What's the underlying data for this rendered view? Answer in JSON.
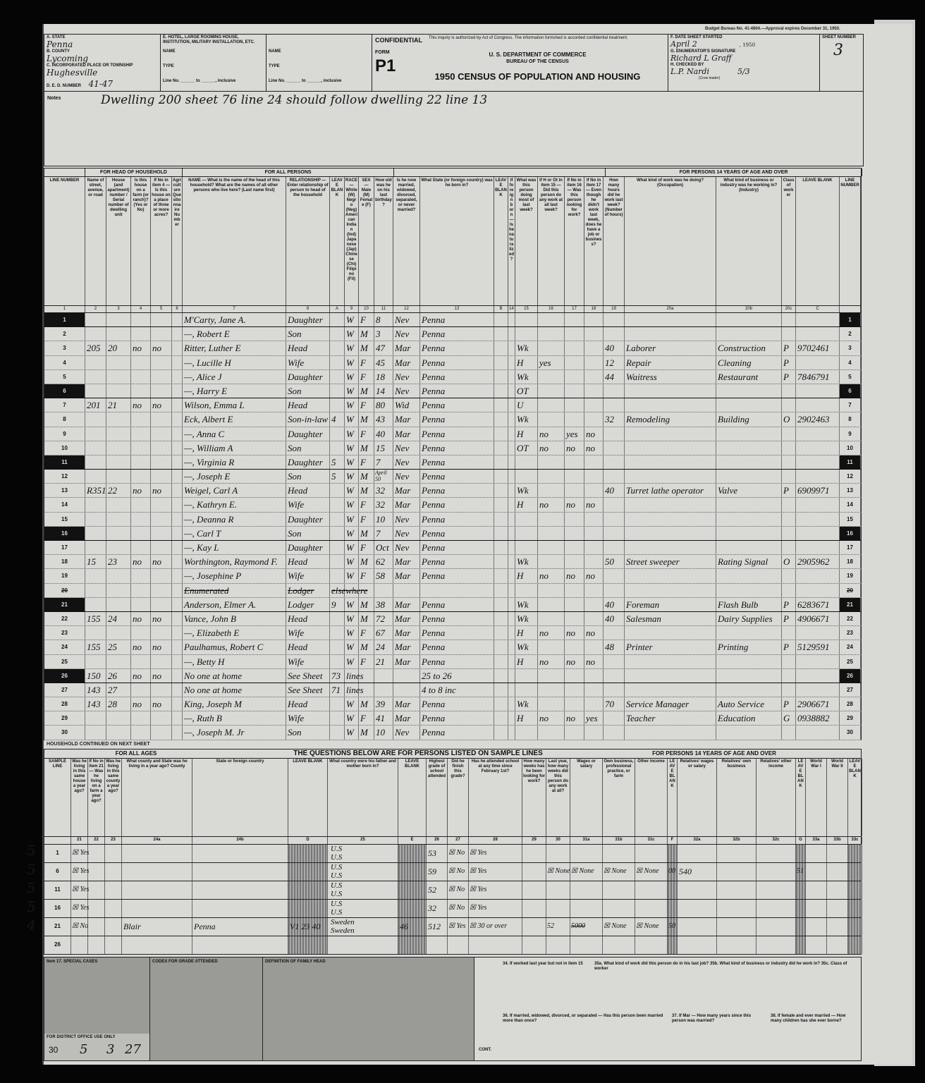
{
  "header": {
    "budget_note": "Budget Bureau No. 41-4804.—Approval expires December 31, 1950.",
    "state_label": "a. State",
    "state": "Penna",
    "county_label": "b. County",
    "county": "Lycoming",
    "place_label": "c. Incorporated place or township",
    "place": "Hughesville",
    "ed_label": "d. E. D. number",
    "ed": "41-47",
    "institution_label": "e. Hotel, large rooming house, institution, military installation, etc.",
    "name_label": "Name",
    "type_label": "Type",
    "line_label": "Line No. ______ to ______, inclusive",
    "confidential": "CONFIDENTIAL",
    "confidential_text": "This inquiry is authorized by Act of Congress. The information furnished is accorded confidential treatment.",
    "form_label": "FORM",
    "form": "P1",
    "dept": "U. S. DEPARTMENT OF COMMERCE",
    "bureau": "BUREAU OF THE CENSUS",
    "census_title": "1950 CENSUS OF POPULATION AND HOUSING",
    "date_label": "f. Date sheet started",
    "date": "April 2",
    "year": ", 1950",
    "enumerator_label": "g. Enumerator's signature",
    "enumerator": "Richard L Graff",
    "checked_label": "h. Checked by",
    "checked": "L.P. Nardi",
    "checked_date": "5/3",
    "crew_leader": "(Crew leader)",
    "sheet_label": "SHEET NUMBER",
    "sheet": "3"
  },
  "notes": {
    "label": "Notes",
    "text": "Dwelling 200 sheet 76 line 24 should follow dwelling 22 line 13"
  },
  "sections": [
    "",
    "FOR HEAD OF HOUSEHOLD",
    "FOR ALL PERSONS",
    "",
    "FOR PERSONS 14 YEARS OF AGE AND OVER"
  ],
  "columns": [
    {
      "n": "1",
      "q": "LINE NUMBER"
    },
    {
      "n": "2",
      "q": "Name of street, avenue, or road"
    },
    {
      "n": "3",
      "q": "House (and apartment) number / Serial number of dwelling unit"
    },
    {
      "n": "4",
      "q": "Is this house on a farm (or ranch)? (Yes or No)"
    },
    {
      "n": "5",
      "q": "If No in item 4 — Is this house on a place of three or more acres?"
    },
    {
      "n": "6",
      "q": "Agriculture Questionnaire Number"
    },
    {
      "n": "7",
      "q": "NAME — What is the name of the head of this household? What are the names of all other persons who live here? (Last name first)"
    },
    {
      "n": "8",
      "q": "RELATIONSHIP — Enter relationship of person to head of the household"
    },
    {
      "n": "A",
      "q": "LEAVE BLANK"
    },
    {
      "n": "9",
      "q": "RACE — White (W) Negro (Neg) American Indian (Ind) Japanese (Jap) Chinese (Chi) Filipino (Fil)"
    },
    {
      "n": "10",
      "q": "SEX — Male (M) Female (F)"
    },
    {
      "n": "11",
      "q": "How old was he on his last birthday?"
    },
    {
      "n": "12",
      "q": "Is he now married, widowed, divorced, separated, or never married?"
    },
    {
      "n": "13",
      "q": "What State (or foreign country) was he born in?"
    },
    {
      "n": "B",
      "q": "LEAVE BLANK"
    },
    {
      "n": "14",
      "q": "If foreign born — Is he naturalized?"
    },
    {
      "n": "15",
      "q": "What was this person doing most of last week?"
    },
    {
      "n": "16",
      "q": "If H or Ot in item 15 — Did this person do any work at all last week?"
    },
    {
      "n": "17",
      "q": "If No in item 16 — Was this person looking for work?"
    },
    {
      "n": "18",
      "q": "If No in item 17 — Even though he didn't work last week, does he have a job or business?"
    },
    {
      "n": "19",
      "q": "How many hours did he work last week? (Number of hours)"
    },
    {
      "n": "20a",
      "q": "What kind of work was he doing? (Occupation)"
    },
    {
      "n": "20b",
      "q": "What kind of business or industry was he working in? (Industry)"
    },
    {
      "n": "20c",
      "q": "Class of worker"
    },
    {
      "n": "C",
      "q": "LEAVE BLANK"
    },
    {
      "n": "",
      "q": "LINE NUMBER"
    }
  ],
  "rows": [
    {
      "ln": "1",
      "name": "M'Carty, Jane A.",
      "rel": "Daughter",
      "race": "W",
      "sex": "F",
      "age": "8",
      "mar": "Nev",
      "birth": "Penna"
    },
    {
      "ln": "2",
      "name": "—, Robert E",
      "rel": "Son",
      "race": "W",
      "sex": "M",
      "age": "3",
      "mar": "Nev",
      "birth": "Penna"
    },
    {
      "ln": "3",
      "dw": "205",
      "serial": "20",
      "farm": "no",
      "acres": "no",
      "name": "Ritter, Luther E",
      "rel": "Head",
      "race": "W",
      "sex": "M",
      "age": "47",
      "mar": "Mar",
      "birth": "Penna",
      "c15": "Wk",
      "c19": "40",
      "occ": "Laborer",
      "ind": "Construction",
      "cls": "P",
      "code": "9702461"
    },
    {
      "ln": "4",
      "name": "—, Lucille H",
      "rel": "Wife",
      "race": "W",
      "sex": "F",
      "age": "45",
      "mar": "Mar",
      "birth": "Penna",
      "c15": "H",
      "c16": "yes",
      "c19": "12",
      "occ": "Repair",
      "ind": "Cleaning",
      "cls": "P"
    },
    {
      "ln": "5",
      "name": "—, Alice J",
      "rel": "Daughter",
      "race": "W",
      "sex": "F",
      "age": "18",
      "mar": "Nev",
      "birth": "Penna",
      "c15": "Wk",
      "c19": "44",
      "occ": "Waitress",
      "ind": "Restaurant",
      "cls": "P",
      "code": "7846791"
    },
    {
      "ln": "6",
      "name": "—, Harry E",
      "rel": "Son",
      "race": "W",
      "sex": "M",
      "age": "14",
      "mar": "Nev",
      "birth": "Penna",
      "c15": "OT"
    },
    {
      "ln": "7",
      "dw": "201",
      "serial": "21",
      "farm": "no",
      "acres": "no",
      "name": "Wilson, Emma L",
      "rel": "Head",
      "race": "W",
      "sex": "F",
      "age": "80",
      "mar": "Wid",
      "birth": "Penna",
      "c15": "U"
    },
    {
      "ln": "8",
      "name": "Eck, Albert E",
      "rel": "Son-in-law",
      "a": "4",
      "race": "W",
      "sex": "M",
      "age": "43",
      "mar": "Mar",
      "birth": "Penna",
      "c15": "Wk",
      "c19": "32",
      "occ": "Remodeling",
      "ind": "Building",
      "cls": "O",
      "code": "2902463"
    },
    {
      "ln": "9",
      "name": "—, Anna C",
      "rel": "Daughter",
      "race": "W",
      "sex": "F",
      "age": "40",
      "mar": "Mar",
      "birth": "Penna",
      "c15": "H",
      "c16": "no",
      "c17": "yes",
      "c18": "no"
    },
    {
      "ln": "10",
      "name": "—, William A",
      "rel": "Son",
      "race": "W",
      "sex": "M",
      "age": "15",
      "mar": "Nev",
      "birth": "Penna",
      "c15": "OT",
      "c16": "no",
      "c17": "no",
      "c18": "no"
    },
    {
      "ln": "11",
      "name": "—, Virginia R",
      "rel": "Daughter",
      "a": "5",
      "race": "W",
      "sex": "F",
      "age": "7",
      "mar": "Nev",
      "birth": "Penna"
    },
    {
      "ln": "12",
      "name": "—, Joseph E",
      "rel": "Son",
      "a": "5",
      "race": "W",
      "sex": "M",
      "age": "April 50",
      "mar": "Nev",
      "birth": "Penna"
    },
    {
      "ln": "13",
      "dw": "R351",
      "serial": "22",
      "farm": "no",
      "acres": "no",
      "name": "Weigel, Carl A",
      "rel": "Head",
      "race": "W",
      "sex": "M",
      "age": "32",
      "mar": "Mar",
      "birth": "Penna",
      "c15": "Wk",
      "c19": "40",
      "occ": "Turret lathe operator",
      "ind": "Valve",
      "cls": "P",
      "code": "6909971"
    },
    {
      "ln": "14",
      "name": "—, Kathryn E.",
      "rel": "Wife",
      "race": "W",
      "sex": "F",
      "age": "32",
      "mar": "Mar",
      "birth": "Penna",
      "c15": "H",
      "c16": "no",
      "c17": "no",
      "c18": "no"
    },
    {
      "ln": "15",
      "name": "—, Deanna R",
      "rel": "Daughter",
      "race": "W",
      "sex": "F",
      "age": "10",
      "mar": "Nev",
      "birth": "Penna"
    },
    {
      "ln": "16",
      "name": "—, Carl T",
      "rel": "Son",
      "race": "W",
      "sex": "M",
      "age": "7",
      "mar": "Nev",
      "birth": "Penna"
    },
    {
      "ln": "17",
      "name": "—, Kay L",
      "rel": "Daughter",
      "race": "W",
      "sex": "F",
      "age": "Oct",
      "mar": "Nev",
      "birth": "Penna"
    },
    {
      "ln": "18",
      "dw": "15",
      "serial": "23",
      "farm": "no",
      "acres": "no",
      "name": "Worthington, Raymond F.",
      "rel": "Head",
      "race": "W",
      "sex": "M",
      "age": "62",
      "mar": "Mar",
      "birth": "Penna",
      "c15": "Wk",
      "c19": "50",
      "occ": "Street sweeper",
      "ind": "Rating Signal",
      "cls": "O",
      "code": "2905962"
    },
    {
      "ln": "19",
      "name": "—, Josephine P",
      "rel": "Wife",
      "race": "W",
      "sex": "F",
      "age": "58",
      "mar": "Mar",
      "birth": "Penna",
      "c15": "H",
      "c16": "no",
      "c17": "no",
      "c18": "no"
    },
    {
      "ln": "20",
      "name": "Enumerated",
      "rel": "Lodger",
      "a": "elsewhere",
      "strike": true
    },
    {
      "ln": "21",
      "name": "Anderson, Elmer A.",
      "rel": "Lodger",
      "a": "9",
      "race": "W",
      "sex": "M",
      "age": "38",
      "mar": "Mar",
      "birth": "Penna",
      "c15": "Wk",
      "c19": "40",
      "occ": "Foreman",
      "ind": "Flash Bulb",
      "cls": "P",
      "code": "6283671"
    },
    {
      "ln": "22",
      "dw": "155",
      "serial": "24",
      "farm": "no",
      "acres": "no",
      "name": "Vance, John B",
      "rel": "Head",
      "race": "W",
      "sex": "M",
      "age": "72",
      "mar": "Mar",
      "birth": "Penna",
      "c15": "Wk",
      "c19": "40",
      "occ": "Salesman",
      "ind": "Dairy Supplies",
      "cls": "P",
      "code": "4906671"
    },
    {
      "ln": "23",
      "name": "—, Elizabeth E",
      "rel": "Wife",
      "race": "W",
      "sex": "F",
      "age": "67",
      "mar": "Mar",
      "birth": "Penna",
      "c15": "H",
      "c16": "no",
      "c17": "no",
      "c18": "no"
    },
    {
      "ln": "24",
      "dw": "155",
      "serial": "25",
      "farm": "no",
      "acres": "no",
      "name": "Paulhamus, Robert C",
      "rel": "Head",
      "race": "W",
      "sex": "M",
      "age": "24",
      "mar": "Mar",
      "birth": "Penna",
      "c15": "Wk",
      "c19": "48",
      "occ": "Printer",
      "ind": "Printing",
      "cls": "P",
      "code": "5129591"
    },
    {
      "ln": "25",
      "name": "—, Betty H",
      "rel": "Wife",
      "race": "W",
      "sex": "F",
      "age": "21",
      "mar": "Mar",
      "birth": "Penna",
      "c15": "H",
      "c16": "no",
      "c17": "no",
      "c18": "no"
    },
    {
      "ln": "26",
      "dw": "150",
      "serial": "26",
      "farm": "no",
      "acres": "no",
      "name": "No one at home",
      "rel": "See Sheet",
      "a": "73",
      "race": "lines",
      "birth": "25 to 26"
    },
    {
      "ln": "27",
      "dw": "143",
      "serial": "27",
      "name": "No one at home",
      "rel": "See Sheet",
      "a": "71",
      "race": "lines",
      "birth": "4 to 8 inc"
    },
    {
      "ln": "28",
      "dw": "143",
      "serial": "28",
      "farm": "no",
      "acres": "no",
      "name": "King, Joseph M",
      "rel": "Head",
      "race": "W",
      "sex": "M",
      "age": "39",
      "mar": "Mar",
      "birth": "Penna",
      "c15": "Wk",
      "c19": "70",
      "occ": "Service Manager",
      "ind": "Auto Service",
      "cls": "P",
      "code": "2906671"
    },
    {
      "ln": "29",
      "name": "—, Ruth B",
      "rel": "Wife",
      "race": "W",
      "sex": "F",
      "age": "41",
      "mar": "Mar",
      "birth": "Penna",
      "c15": "H",
      "c16": "no",
      "c17": "no",
      "c18": "yes",
      "occ": "Teacher",
      "ind": "Education",
      "cls": "G",
      "code": "0938882"
    },
    {
      "ln": "30",
      "name": "—, Joseph M. Jr",
      "rel": "Son",
      "race": "W",
      "sex": "M",
      "age": "10",
      "mar": "Nev",
      "birth": "Penna"
    }
  ],
  "sample_lines": [
    "1",
    "6",
    "11",
    "16",
    "21",
    "26"
  ],
  "sample": {
    "continued": "HOUSEHOLD CONTINUED ON NEXT SHEET",
    "title": "THE QUESTIONS BELOW ARE FOR PERSONS LISTED ON SAMPLE LINES",
    "for_all_ages": "FOR ALL AGES",
    "for_14": "FOR PERSONS 14 YEARS OF AGE AND OVER",
    "columns": [
      {
        "n": "",
        "q": "SAMPLE LINE"
      },
      {
        "n": "21",
        "q": "Was he living in this same house a year ago?"
      },
      {
        "n": "22",
        "q": "If No in item 21 — Was he living on a farm a year ago?"
      },
      {
        "n": "23",
        "q": "Was he living in this same county a year ago?"
      },
      {
        "n": "24a",
        "q": "What county and State was he living in a year ago? County"
      },
      {
        "n": "24b",
        "q": "State or foreign country"
      },
      {
        "n": "D",
        "q": "LEAVE BLANK"
      },
      {
        "n": "25",
        "q": "What country were his father and mother born in?"
      },
      {
        "n": "E",
        "q": "LEAVE BLANK"
      },
      {
        "n": "26",
        "q": "Highest grade of school attended"
      },
      {
        "n": "27",
        "q": "Did he finish this grade?"
      },
      {
        "n": "28",
        "q": "Has he attended school at any time since February 1st?"
      },
      {
        "n": "29",
        "q": "How many weeks has he been looking for work?"
      },
      {
        "n": "30",
        "q": "Last year, how many weeks did this person do any work at all?"
      },
      {
        "n": "31a",
        "q": "Wages or salary"
      },
      {
        "n": "31b",
        "q": "Own business, professional practice, or farm"
      },
      {
        "n": "31c",
        "q": "Other income"
      },
      {
        "n": "F",
        "q": "LEAVE BLANK"
      },
      {
        "n": "32a",
        "q": "Relatives' wages or salary"
      },
      {
        "n": "32b",
        "q": "Relatives' own business"
      },
      {
        "n": "32c",
        "q": "Relatives' other income"
      },
      {
        "n": "G",
        "q": "LEAVE BLANK"
      },
      {
        "n": "33a",
        "q": "World War I"
      },
      {
        "n": "33b",
        "q": "World War II"
      },
      {
        "n": "33c",
        "q": "LEAVE BLANK"
      }
    ],
    "rows": [
      {
        "margin": "5",
        "line": "1",
        "c21": "☒ Yes",
        "c25f": "U.S",
        "c25m": "U.S",
        "c26": "53",
        "c27": "☒ No",
        "c28": "☒ Yes"
      },
      {
        "margin": "5",
        "line": "6",
        "c21": "☒ Yes",
        "c25f": "U.S",
        "c25m": "U.S",
        "c26": "59",
        "c27": "☒ No",
        "c28": "☒ Yes",
        "c30": "☒ None",
        "c31a": "☒ None",
        "c31b": "☒ None",
        "c31c": "☒ None",
        "f": "00",
        "c32a": "540",
        "g": "51"
      },
      {
        "margin": "5",
        "line": "11",
        "c21": "☒ Yes",
        "c25f": "U.S",
        "c25m": "U.S",
        "c26": "52",
        "c27": "☒ No",
        "c28": "☒ Yes"
      },
      {
        "margin": "5",
        "line": "16",
        "c21": "☒ Yes",
        "c25f": "U.S",
        "c25m": "U.S",
        "c26": "32",
        "c27": "☒ No",
        "c28": "☒ Yes"
      },
      {
        "margin": "4",
        "line": "21",
        "c21": "☒ No",
        "c24a": "Blair",
        "c24b": "Penna",
        "d": "V1 23 40",
        "c25f": "Sweden",
        "c25m": "Sweden",
        "e": "46",
        "c26": "512",
        "c27": "☒ Yes",
        "c28": "☒ 30 or over",
        "c30": "52",
        "c31a": "5000",
        "c31b": "☒ None",
        "c31c": "☒ None",
        "f": "50"
      },
      {
        "margin": "",
        "line": "26"
      }
    ]
  },
  "footer": {
    "special_cases": "Item 17. SPECIAL CASES",
    "grade_codes": "CODES FOR GRADE ATTENDED",
    "family_head": "DEFINITION OF FAMILY HEAD",
    "district_office": "FOR DISTRICT OFFICE USE ONLY",
    "values": [
      "30",
      "5",
      "3",
      "27"
    ],
    "cont": "CONT.",
    "q34": "34. If worked last year but not in item 15",
    "q35": "35a. What kind of work did this person do in his last job?  35b. What kind of business or industry did he work in?  35c. Class of worker",
    "q36": "36. If married, widowed, divorced, or separated — Has this person been married more than once?",
    "q37": "37. If Mar — How many years since this person was married?",
    "q38": "38. If female and ever married — How many children has she ever borne?"
  }
}
